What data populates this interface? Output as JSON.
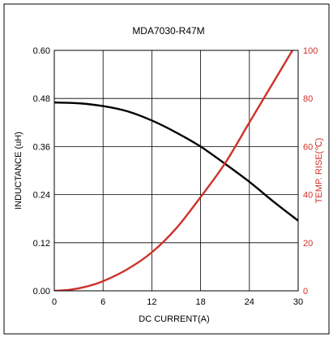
{
  "chart_data": {
    "type": "line",
    "title": "MDA7030-R47M",
    "xlabel": "DC CURRENT(A)",
    "ylabel_left": "INDUCTANCE (uH)",
    "ylabel_right": "TEMP. RISE(℃)",
    "x_ticks": [
      "0",
      "6",
      "12",
      "18",
      "24",
      "30"
    ],
    "y_left_ticks": [
      "0.00",
      "0.12",
      "0.24",
      "0.36",
      "0.48",
      "0.60"
    ],
    "y_right_ticks": [
      "0",
      "20",
      "40",
      "60",
      "80",
      "100"
    ],
    "xlim": [
      0,
      30
    ],
    "ylim_left": [
      0,
      0.6
    ],
    "ylim_right": [
      0,
      100
    ],
    "grid": true,
    "colors": {
      "left_axis": "#000000",
      "right_axis": "#d0302a",
      "grid": "#000000"
    },
    "series": [
      {
        "axis": "left",
        "color": "#000000",
        "x": [
          0,
          3,
          6,
          9,
          12,
          15,
          18,
          21,
          24,
          27,
          30
        ],
        "y": [
          0.47,
          0.468,
          0.461,
          0.448,
          0.425,
          0.395,
          0.36,
          0.317,
          0.272,
          0.222,
          0.175
        ]
      },
      {
        "axis": "right",
        "color": "#d0302a",
        "x": [
          0,
          2,
          4,
          6,
          9,
          12,
          15,
          18,
          21,
          24,
          27,
          30
        ],
        "y": [
          0,
          0.5,
          1.8,
          4,
          9,
          16,
          26,
          39,
          53,
          70,
          87,
          104
        ]
      }
    ]
  }
}
